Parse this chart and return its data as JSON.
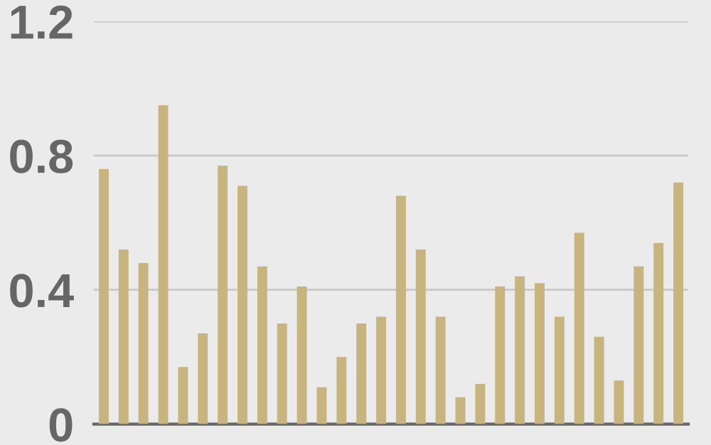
{
  "chart_data": {
    "type": "bar",
    "categories": [
      null,
      null,
      null,
      null,
      null,
      null,
      null,
      null,
      null,
      null,
      null,
      null,
      null,
      null,
      null,
      null,
      null,
      null,
      null,
      null,
      null,
      null,
      null,
      null,
      null,
      null,
      null,
      null,
      null,
      null
    ],
    "values": [
      0.76,
      0.52,
      0.48,
      0.95,
      0.17,
      0.27,
      0.77,
      0.71,
      0.47,
      0.3,
      0.41,
      0.11,
      0.2,
      0.3,
      0.32,
      0.68,
      0.52,
      0.32,
      0.08,
      0.12,
      0.41,
      0.44,
      0.42,
      0.32,
      0.57,
      0.26,
      0.13,
      0.47,
      0.54,
      0.72
    ],
    "color": "#c8b47e",
    "ylim": [
      0,
      1.2
    ],
    "yticks": [
      0,
      0.4,
      0.8,
      1.2
    ],
    "grid": "y"
  }
}
